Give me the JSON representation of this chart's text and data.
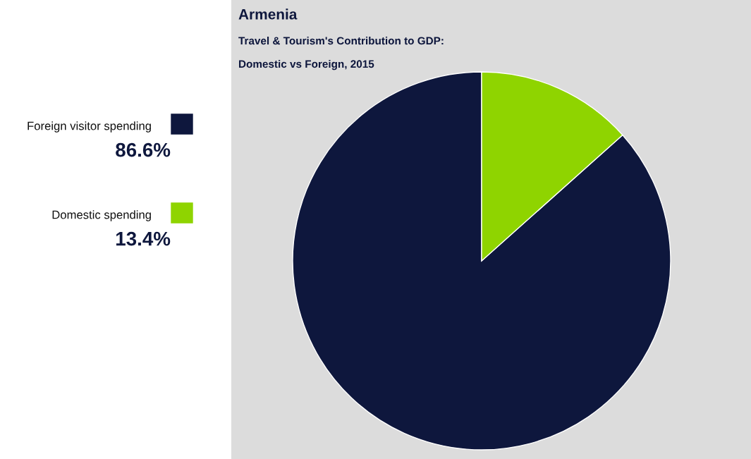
{
  "chart_data": {
    "type": "pie",
    "title": "Armenia",
    "subtitle": "Travel & Tourism's Contribution to GDP:\n\nDomestic vs Foreign, 2015",
    "categories": [
      "Foreign visitor spending",
      "Domestic spending"
    ],
    "values": [
      86.6,
      13.4
    ],
    "value_labels": [
      "86.6%",
      "13.4%"
    ],
    "colors": [
      "#0e173d",
      "#8fd400"
    ],
    "legend": "left"
  }
}
